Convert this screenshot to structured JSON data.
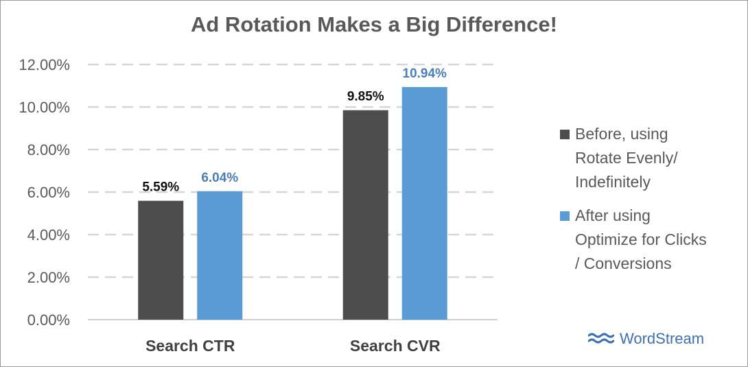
{
  "chart_data": {
    "type": "bar",
    "title": "Ad Rotation Makes a Big Difference!",
    "categories": [
      "Search CTR",
      "Search CVR"
    ],
    "series": [
      {
        "name": "Before, using Rotate Evenly/ Indefinitely",
        "legend_lines": [
          "Before, using",
          "Rotate Evenly/",
          "Indefinitely"
        ],
        "values": [
          5.59,
          9.85
        ],
        "labels": [
          "5.59%",
          "9.85%"
        ],
        "color": "#4d4d4d",
        "label_color": "#111111"
      },
      {
        "name": "After using Optimize for Clicks / Conversions",
        "legend_lines": [
          "After using",
          "Optimize for Clicks",
          "/ Conversions"
        ],
        "values": [
          6.04,
          10.94
        ],
        "labels": [
          "6.04%",
          "10.94%"
        ],
        "color": "#5b9bd5",
        "label_color": "#4a7ebb"
      }
    ],
    "ylim": [
      0,
      12
    ],
    "yticks": [
      0,
      2,
      4,
      6,
      8,
      10,
      12
    ],
    "ytick_labels": [
      "0.00%",
      "2.00%",
      "4.00%",
      "6.00%",
      "8.00%",
      "10.00%",
      "12.00%"
    ],
    "grid": true,
    "grid_style": "dashed",
    "legend_position": "right"
  },
  "branding": {
    "logo_text": "WordStream",
    "logo_color": "#3d6fb5"
  }
}
